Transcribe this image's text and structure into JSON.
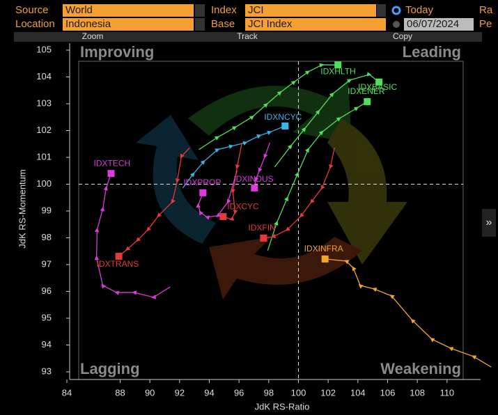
{
  "header": {
    "source_label": "Source",
    "source": "World",
    "index_label": "Index",
    "index": "JCI",
    "today": "Today",
    "range_label": "Ra",
    "location_label": "Location",
    "location": "Indonesia",
    "base_label": "Base",
    "base": "JCI Index",
    "date": "06/07/2024",
    "period_label": "Pe"
  },
  "toolbar": [
    "Zoom",
    "Track",
    "Copy"
  ],
  "side_button": "»",
  "chart_data": {
    "type": "line",
    "xlabel": "JdK RS-Ratio",
    "ylabel": "JdK RS-Momentum",
    "quadrants": {
      "improving": "Improving",
      "leading": "Leading",
      "lagging": "Lagging",
      "weakening": "Weakening"
    },
    "xlim": [
      84.6,
      113.9
    ],
    "ylim": [
      93,
      105
    ],
    "xticks": [
      84,
      88,
      90,
      92,
      94,
      96,
      98,
      100,
      102,
      104,
      106,
      108,
      110
    ],
    "yticks": [
      93,
      94,
      95,
      96,
      97,
      98,
      99,
      100,
      101,
      102,
      103,
      104,
      105
    ],
    "xref": 100,
    "yref": 100,
    "series": [
      {
        "name": "IDXHLTH",
        "color": "#4fe05a",
        "x": [
          93.3,
          94.56,
          95.73,
          96.9,
          97.84,
          98.77,
          99.71,
          100.65,
          101.58,
          102.66
        ],
        "values": [
          101.29,
          101.75,
          102.12,
          102.51,
          102.97,
          103.42,
          103.81,
          104.19,
          104.45,
          104.45
        ]
      },
      {
        "name": "IDXBASIC",
        "color": "#4fe05a",
        "x": [
          98.4,
          99.48,
          100.41,
          101.35,
          102.29,
          103.46,
          104.77,
          105.42
        ],
        "values": [
          100.64,
          101.42,
          102.06,
          102.71,
          103.36,
          103.88,
          104.09,
          103.81
        ]
      },
      {
        "name": "IDXENER",
        "color": "#4fe05a",
        "x": [
          97.93,
          98.54,
          99.24,
          99.94,
          100.65,
          101.58,
          102.75,
          103.93,
          104.63
        ],
        "values": [
          97.52,
          98.56,
          99.47,
          100.38,
          101.29,
          101.94,
          102.45,
          102.84,
          103.08
        ]
      },
      {
        "name": "IDXNCYC",
        "color": "#3ab4ec",
        "x": [
          92.22,
          92.92,
          93.62,
          94.56,
          95.49,
          96.43,
          97.37,
          98.07,
          99.1
        ],
        "values": [
          99.86,
          100.38,
          100.84,
          101.29,
          101.42,
          101.55,
          101.81,
          101.94,
          102.17
        ]
      },
      {
        "name": "IDXTECH",
        "color": "#d93bdc",
        "x": [
          91.37,
          90.25,
          88.94,
          87.77,
          86.83,
          86.41,
          86.45,
          86.83,
          87.06,
          87.39
        ],
        "values": [
          96.17,
          95.78,
          95.96,
          95.96,
          96.22,
          97.26,
          98.3,
          99.08,
          99.86,
          100.4
        ]
      },
      {
        "name": "IDXTRANS",
        "color": "#e43a3a",
        "x": [
          92.68,
          92.12,
          91.84,
          91.51,
          90.58,
          89.87,
          89.17,
          88.47,
          87.91
        ],
        "values": [
          101.36,
          101.03,
          100.12,
          99.34,
          98.82,
          98.3,
          97.91,
          97.57,
          97.31
        ]
      },
      {
        "name": "IDXPROP",
        "color": "#d93bdc",
        "x": [
          95.87,
          95.26,
          94.56,
          93.85,
          93.39,
          93.25,
          93.57
        ],
        "values": [
          100.51,
          99.34,
          98.82,
          98.77,
          98.95,
          99.21,
          99.68
        ]
      },
      {
        "name": "IDXCYC",
        "color": "#e43a3a",
        "x": [
          96.2,
          95.87,
          95.59,
          95.73,
          95.49,
          94.93
        ],
        "values": [
          101.55,
          100.64,
          99.73,
          98.95,
          98.69,
          98.79
        ]
      },
      {
        "name": "IDXINDUS",
        "color": "#d93bdc",
        "x": [
          98.07,
          97.74,
          97.37,
          97.13,
          97.04
        ],
        "values": [
          101.55,
          101.03,
          100.51,
          100.17,
          99.86
        ]
      },
      {
        "name": "IDXFIN",
        "color": "#e43a3a",
        "x": [
          102.43,
          102.15,
          101.58,
          100.88,
          100.18,
          99.24,
          98.3,
          97.65
        ],
        "values": [
          101.36,
          100.64,
          99.86,
          99.34,
          98.82,
          98.3,
          98.04,
          97.99
        ]
      },
      {
        "name": "IDXINFRA",
        "color": "#f5a623",
        "x": [
          112.97,
          111.79,
          110.25,
          108.98,
          107.67,
          106.27,
          105.1,
          104.16,
          103.69,
          103.22,
          101.79
        ],
        "values": [
          93.18,
          93.57,
          93.88,
          94.22,
          94.92,
          95.83,
          96.09,
          96.22,
          96.87,
          97.13,
          97.21
        ]
      }
    ]
  }
}
